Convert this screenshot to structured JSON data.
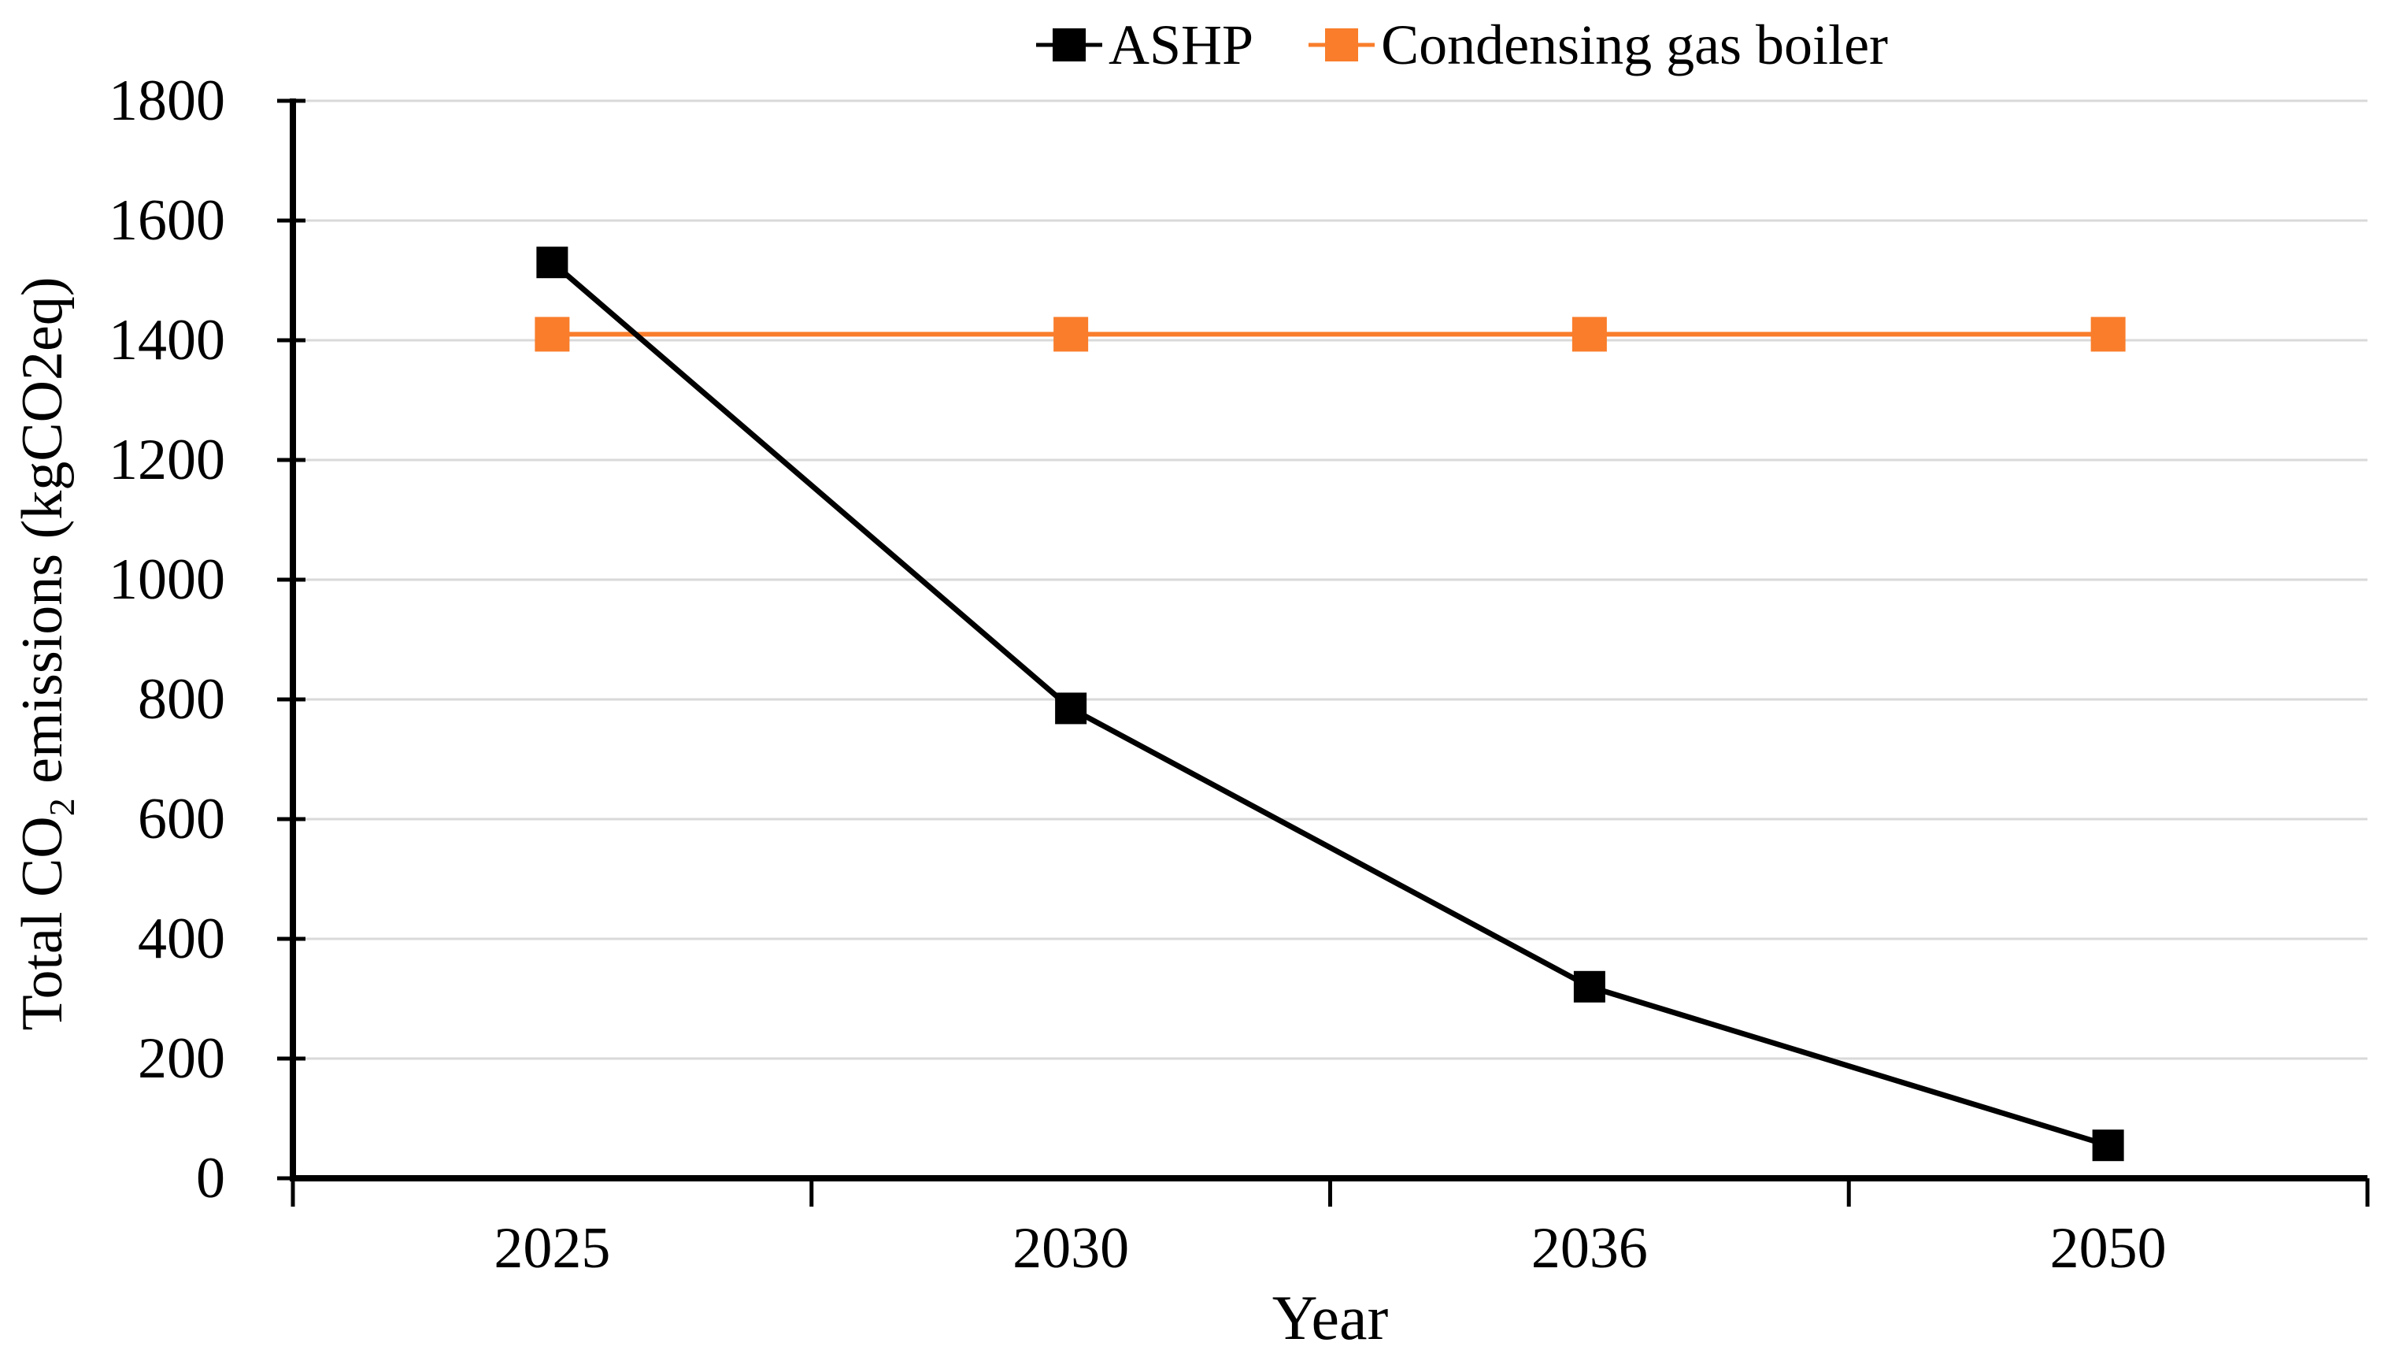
{
  "colors": {
    "background": "#FFFFFF",
    "grid": "#D9D9D9",
    "axis": "#000000",
    "text": "#000000",
    "ashp": "#000000",
    "boiler": "#F97D2B"
  },
  "chart_data": {
    "type": "line",
    "title": "",
    "categories": [
      "2025",
      "2030",
      "2036",
      "2050"
    ],
    "series": [
      {
        "name": "ASHP",
        "color": "#000000",
        "marker": "square",
        "values": [
          1530,
          785,
          320,
          55
        ]
      },
      {
        "name": "Condensing gas boiler",
        "color": "#F97D2B",
        "marker": "square",
        "values": [
          1410,
          1410,
          1410,
          1410
        ]
      }
    ],
    "xlabel": "Year",
    "ylabel": "Total CO2 emissions (kgCO2eq)",
    "ylabel_parts": {
      "pre": "Total CO",
      "sub": "2",
      "post": " emissions (kgCO2eq)"
    },
    "ylim": [
      0,
      1800
    ],
    "ytick_interval": 200,
    "yticks": [
      0,
      200,
      400,
      600,
      800,
      1000,
      1200,
      1400,
      1600,
      1800
    ],
    "grid": "horizontal",
    "legend_position": "top-center"
  }
}
